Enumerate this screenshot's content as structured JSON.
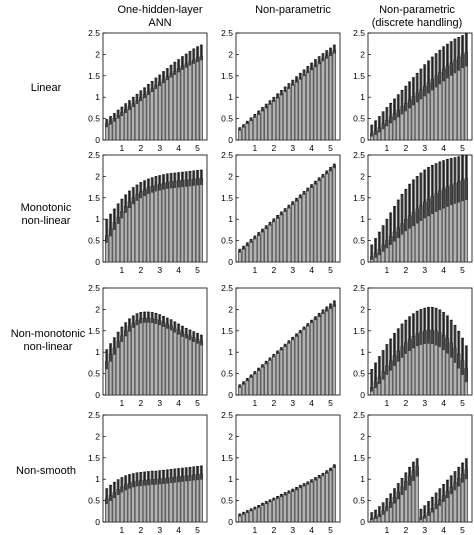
{
  "figure": {
    "column_titles": [
      [
        "One-hidden-layer",
        "ANN"
      ],
      [
        "Non-parametric",
        ""
      ],
      [
        "Non-parametric",
        "(discrete handling)"
      ]
    ],
    "row_labels": [
      [
        "Linear"
      ],
      [
        "Monotonic",
        "non-linear"
      ],
      [
        "Non-monotonic",
        "non-linear"
      ],
      [
        "Non-smooth"
      ]
    ]
  },
  "chart_data": {
    "type": "bar",
    "panel_grid": {
      "rows": 4,
      "cols": 3
    },
    "x": [
      0.2,
      0.4,
      0.6,
      0.8,
      1.0,
      1.2,
      1.4,
      1.6,
      1.8,
      2.0,
      2.2,
      2.4,
      2.6,
      2.8,
      3.0,
      3.2,
      3.4,
      3.6,
      3.8,
      4.0,
      4.2,
      4.4,
      4.6,
      4.8,
      5.0,
      5.2
    ],
    "xticks": [
      1,
      2,
      3,
      4,
      5
    ],
    "xlim": [
      0,
      5.5
    ],
    "yticks": [
      0,
      0.5,
      1,
      1.5,
      2,
      2.5
    ],
    "ylim": [
      0,
      2.5
    ],
    "bar_color": "#b3b3b3",
    "band_color": "#333333",
    "error_bar_style": "upper whisker with cap",
    "panels": [
      {
        "row": 0,
        "col": 0,
        "row_label": "Linear",
        "col_title": "One-hidden-layer ANN",
        "values": [
          0.38,
          0.44,
          0.51,
          0.58,
          0.64,
          0.71,
          0.78,
          0.85,
          0.92,
          0.99,
          1.06,
          1.13,
          1.2,
          1.27,
          1.34,
          1.41,
          1.48,
          1.55,
          1.61,
          1.67,
          1.73,
          1.78,
          1.83,
          1.87,
          1.92,
          1.96
        ],
        "upper": [
          0.48,
          0.55,
          0.62,
          0.7,
          0.77,
          0.85,
          0.92,
          1.0,
          1.07,
          1.15,
          1.22,
          1.3,
          1.37,
          1.45,
          1.52,
          1.6,
          1.67,
          1.75,
          1.82,
          1.88,
          1.95,
          2.01,
          2.07,
          2.13,
          2.18,
          2.22
        ],
        "band_low": [
          0.3,
          0.36,
          0.43,
          0.5,
          0.56,
          0.63,
          0.7,
          0.77,
          0.84,
          0.91,
          0.98,
          1.05,
          1.12,
          1.19,
          1.26,
          1.33,
          1.4,
          1.46,
          1.52,
          1.58,
          1.64,
          1.69,
          1.74,
          1.78,
          1.82,
          1.86
        ]
      },
      {
        "row": 0,
        "col": 1,
        "row_label": "Linear",
        "col_title": "Non-parametric",
        "values": [
          0.25,
          0.32,
          0.4,
          0.47,
          0.55,
          0.62,
          0.7,
          0.78,
          0.85,
          0.93,
          1.0,
          1.08,
          1.15,
          1.23,
          1.3,
          1.38,
          1.45,
          1.53,
          1.6,
          1.68,
          1.75,
          1.83,
          1.9,
          1.97,
          2.04,
          2.1
        ],
        "upper": [
          0.29,
          0.36,
          0.44,
          0.52,
          0.6,
          0.68,
          0.76,
          0.84,
          0.92,
          1.0,
          1.08,
          1.16,
          1.24,
          1.32,
          1.4,
          1.48,
          1.56,
          1.64,
          1.72,
          1.8,
          1.88,
          1.95,
          2.02,
          2.09,
          2.15,
          2.22
        ],
        "band_low": [
          0.22,
          0.29,
          0.37,
          0.44,
          0.52,
          0.59,
          0.67,
          0.74,
          0.82,
          0.89,
          0.97,
          1.04,
          1.12,
          1.19,
          1.27,
          1.34,
          1.41,
          1.49,
          1.56,
          1.63,
          1.7,
          1.77,
          1.84,
          1.9,
          1.96,
          2.02
        ]
      },
      {
        "row": 0,
        "col": 2,
        "row_label": "Linear",
        "col_title": "Non-parametric (discrete handling)",
        "values": [
          0.15,
          0.21,
          0.29,
          0.38,
          0.46,
          0.54,
          0.62,
          0.7,
          0.78,
          0.86,
          0.94,
          1.02,
          1.1,
          1.18,
          1.26,
          1.34,
          1.42,
          1.5,
          1.58,
          1.66,
          1.73,
          1.8,
          1.87,
          1.94,
          2.0,
          2.05
        ],
        "upper": [
          0.35,
          0.45,
          0.55,
          0.66,
          0.76,
          0.86,
          0.96,
          1.06,
          1.16,
          1.26,
          1.36,
          1.46,
          1.56,
          1.66,
          1.76,
          1.85,
          1.94,
          2.02,
          2.1,
          2.18,
          2.24,
          2.3,
          2.36,
          2.4,
          2.44,
          2.48
        ],
        "band_low": [
          0.08,
          0.12,
          0.18,
          0.25,
          0.32,
          0.39,
          0.46,
          0.53,
          0.6,
          0.67,
          0.74,
          0.81,
          0.88,
          0.95,
          1.02,
          1.09,
          1.16,
          1.23,
          1.3,
          1.37,
          1.44,
          1.5,
          1.56,
          1.62,
          1.68,
          1.72
        ]
      },
      {
        "row": 1,
        "col": 0,
        "row_label": "Monotonic non-linear",
        "col_title": "One-hidden-layer ANN",
        "values": [
          0.62,
          0.78,
          0.92,
          1.05,
          1.18,
          1.3,
          1.41,
          1.5,
          1.58,
          1.64,
          1.69,
          1.74,
          1.77,
          1.8,
          1.82,
          1.84,
          1.86,
          1.88,
          1.89,
          1.9,
          1.91,
          1.92,
          1.93,
          1.94,
          1.95,
          1.96
        ],
        "upper": [
          1.0,
          1.12,
          1.24,
          1.36,
          1.47,
          1.57,
          1.66,
          1.74,
          1.8,
          1.86,
          1.9,
          1.94,
          1.97,
          2.0,
          2.02,
          2.04,
          2.06,
          2.07,
          2.08,
          2.09,
          2.1,
          2.11,
          2.12,
          2.13,
          2.14,
          2.15
        ],
        "band_low": [
          0.45,
          0.6,
          0.75,
          0.89,
          1.02,
          1.15,
          1.26,
          1.35,
          1.43,
          1.49,
          1.54,
          1.59,
          1.62,
          1.65,
          1.67,
          1.69,
          1.71,
          1.72,
          1.73,
          1.74,
          1.75,
          1.76,
          1.77,
          1.78,
          1.79,
          1.8
        ]
      },
      {
        "row": 1,
        "col": 1,
        "row_label": "Monotonic non-linear",
        "col_title": "Non-parametric",
        "values": [
          0.25,
          0.32,
          0.4,
          0.48,
          0.56,
          0.64,
          0.72,
          0.8,
          0.88,
          0.96,
          1.04,
          1.12,
          1.2,
          1.28,
          1.36,
          1.44,
          1.52,
          1.6,
          1.68,
          1.76,
          1.84,
          1.92,
          2.0,
          2.08,
          2.16,
          2.24
        ],
        "upper": [
          0.3,
          0.37,
          0.45,
          0.53,
          0.61,
          0.69,
          0.77,
          0.85,
          0.93,
          1.01,
          1.09,
          1.17,
          1.25,
          1.33,
          1.41,
          1.49,
          1.57,
          1.65,
          1.73,
          1.81,
          1.89,
          1.97,
          2.05,
          2.13,
          2.21,
          2.29
        ],
        "band_low": [
          0.22,
          0.29,
          0.37,
          0.45,
          0.53,
          0.61,
          0.69,
          0.77,
          0.85,
          0.93,
          1.01,
          1.09,
          1.17,
          1.25,
          1.33,
          1.41,
          1.49,
          1.57,
          1.65,
          1.73,
          1.81,
          1.89,
          1.97,
          2.05,
          2.12,
          2.19
        ]
      },
      {
        "row": 1,
        "col": 2,
        "row_label": "Monotonic non-linear",
        "col_title": "Non-parametric (discrete handling)",
        "values": [
          0.12,
          0.2,
          0.3,
          0.4,
          0.5,
          0.6,
          0.7,
          0.8,
          0.9,
          1.0,
          1.08,
          1.16,
          1.24,
          1.32,
          1.4,
          1.47,
          1.54,
          1.6,
          1.66,
          1.71,
          1.76,
          1.8,
          1.84,
          1.88,
          1.92,
          1.95
        ],
        "upper": [
          0.4,
          0.55,
          0.7,
          0.85,
          1.0,
          1.15,
          1.3,
          1.45,
          1.58,
          1.7,
          1.82,
          1.92,
          2.0,
          2.08,
          2.15,
          2.21,
          2.26,
          2.3,
          2.34,
          2.37,
          2.4,
          2.42,
          2.44,
          2.46,
          2.48,
          2.5
        ],
        "band_low": [
          0.05,
          0.1,
          0.16,
          0.24,
          0.32,
          0.4,
          0.48,
          0.56,
          0.64,
          0.72,
          0.78,
          0.84,
          0.9,
          0.96,
          1.02,
          1.07,
          1.12,
          1.17,
          1.21,
          1.25,
          1.29,
          1.33,
          1.36,
          1.39,
          1.42,
          1.45
        ]
      },
      {
        "row": 2,
        "col": 0,
        "row_label": "Non-monotonic non-linear",
        "col_title": "One-hidden-layer ANN",
        "values": [
          0.78,
          0.95,
          1.1,
          1.25,
          1.38,
          1.5,
          1.6,
          1.68,
          1.74,
          1.78,
          1.8,
          1.8,
          1.79,
          1.77,
          1.74,
          1.7,
          1.66,
          1.62,
          1.57,
          1.52,
          1.47,
          1.42,
          1.38,
          1.34,
          1.3,
          1.26
        ],
        "upper": [
          1.06,
          1.2,
          1.34,
          1.47,
          1.59,
          1.69,
          1.78,
          1.85,
          1.9,
          1.93,
          1.94,
          1.94,
          1.93,
          1.91,
          1.88,
          1.84,
          1.8,
          1.76,
          1.71,
          1.66,
          1.61,
          1.56,
          1.52,
          1.48,
          1.44,
          1.4
        ],
        "band_low": [
          0.6,
          0.78,
          0.94,
          1.1,
          1.24,
          1.37,
          1.48,
          1.57,
          1.63,
          1.67,
          1.69,
          1.69,
          1.68,
          1.66,
          1.63,
          1.59,
          1.55,
          1.51,
          1.46,
          1.41,
          1.36,
          1.32,
          1.28,
          1.24,
          1.2,
          1.16
        ]
      },
      {
        "row": 2,
        "col": 1,
        "row_label": "Non-monotonic non-linear",
        "col_title": "Non-parametric",
        "values": [
          0.2,
          0.27,
          0.35,
          0.43,
          0.51,
          0.59,
          0.67,
          0.75,
          0.83,
          0.91,
          0.99,
          1.07,
          1.15,
          1.23,
          1.31,
          1.39,
          1.47,
          1.55,
          1.63,
          1.71,
          1.79,
          1.86,
          1.93,
          2.0,
          2.06,
          2.11
        ],
        "upper": [
          0.24,
          0.31,
          0.39,
          0.47,
          0.55,
          0.63,
          0.71,
          0.79,
          0.87,
          0.95,
          1.03,
          1.11,
          1.19,
          1.27,
          1.35,
          1.43,
          1.51,
          1.59,
          1.67,
          1.75,
          1.83,
          1.91,
          1.99,
          2.06,
          2.13,
          2.2
        ],
        "band_low": [
          0.17,
          0.24,
          0.32,
          0.4,
          0.48,
          0.56,
          0.64,
          0.72,
          0.8,
          0.88,
          0.96,
          1.04,
          1.12,
          1.2,
          1.28,
          1.36,
          1.44,
          1.52,
          1.6,
          1.68,
          1.75,
          1.82,
          1.89,
          1.95,
          2.01,
          2.06
        ]
      },
      {
        "row": 2,
        "col": 2,
        "row_label": "Non-monotonic non-linear",
        "col_title": "Non-parametric (discrete handling)",
        "values": [
          0.18,
          0.3,
          0.42,
          0.55,
          0.68,
          0.8,
          0.92,
          1.03,
          1.13,
          1.22,
          1.3,
          1.37,
          1.43,
          1.47,
          1.5,
          1.52,
          1.52,
          1.5,
          1.46,
          1.4,
          1.32,
          1.22,
          1.1,
          0.96,
          0.8,
          0.62
        ],
        "upper": [
          0.6,
          0.75,
          0.9,
          1.04,
          1.18,
          1.31,
          1.44,
          1.55,
          1.66,
          1.75,
          1.83,
          1.9,
          1.96,
          2.0,
          2.03,
          2.05,
          2.05,
          2.03,
          1.99,
          1.93,
          1.85,
          1.75,
          1.63,
          1.49,
          1.33,
          1.15
        ],
        "band_low": [
          0.08,
          0.16,
          0.26,
          0.36,
          0.47,
          0.57,
          0.68,
          0.78,
          0.87,
          0.96,
          1.03,
          1.09,
          1.14,
          1.17,
          1.19,
          1.2,
          1.19,
          1.16,
          1.12,
          1.05,
          0.97,
          0.87,
          0.75,
          0.62,
          0.47,
          0.3
        ]
      },
      {
        "row": 3,
        "col": 0,
        "row_label": "Non-smooth",
        "col_title": "One-hidden-layer ANN",
        "values": [
          0.55,
          0.62,
          0.69,
          0.76,
          0.82,
          0.87,
          0.91,
          0.94,
          0.96,
          0.97,
          0.98,
          0.99,
          1.0,
          1.0,
          1.01,
          1.02,
          1.03,
          1.04,
          1.05,
          1.06,
          1.07,
          1.08,
          1.09,
          1.1,
          1.11,
          1.12
        ],
        "upper": [
          0.78,
          0.86,
          0.93,
          0.99,
          1.04,
          1.08,
          1.11,
          1.13,
          1.15,
          1.16,
          1.17,
          1.18,
          1.19,
          1.19,
          1.2,
          1.21,
          1.22,
          1.23,
          1.24,
          1.25,
          1.26,
          1.27,
          1.28,
          1.29,
          1.3,
          1.31
        ],
        "band_low": [
          0.42,
          0.49,
          0.56,
          0.63,
          0.69,
          0.74,
          0.78,
          0.81,
          0.83,
          0.84,
          0.85,
          0.86,
          0.87,
          0.87,
          0.88,
          0.89,
          0.9,
          0.91,
          0.92,
          0.93,
          0.94,
          0.95,
          0.96,
          0.97,
          0.98,
          0.99
        ]
      },
      {
        "row": 3,
        "col": 1,
        "row_label": "Non-smooth",
        "col_title": "Non-parametric",
        "values": [
          0.15,
          0.19,
          0.23,
          0.27,
          0.31,
          0.35,
          0.4,
          0.44,
          0.48,
          0.52,
          0.56,
          0.61,
          0.65,
          0.69,
          0.73,
          0.77,
          0.82,
          0.86,
          0.9,
          0.95,
          1.0,
          1.05,
          1.1,
          1.16,
          1.22,
          1.3
        ],
        "upper": [
          0.19,
          0.23,
          0.27,
          0.31,
          0.35,
          0.39,
          0.44,
          0.48,
          0.52,
          0.56,
          0.6,
          0.65,
          0.69,
          0.73,
          0.77,
          0.81,
          0.86,
          0.9,
          0.94,
          0.99,
          1.04,
          1.09,
          1.14,
          1.2,
          1.26,
          1.34
        ],
        "band_low": [
          0.13,
          0.17,
          0.21,
          0.25,
          0.29,
          0.33,
          0.38,
          0.42,
          0.46,
          0.5,
          0.54,
          0.58,
          0.62,
          0.66,
          0.7,
          0.74,
          0.79,
          0.83,
          0.87,
          0.92,
          0.97,
          1.02,
          1.07,
          1.13,
          1.19,
          1.26
        ]
      },
      {
        "row": 3,
        "col": 2,
        "row_label": "Non-smooth",
        "col_title": "Non-parametric (discrete handling)",
        "values": [
          0.08,
          0.12,
          0.18,
          0.26,
          0.36,
          0.46,
          0.58,
          0.7,
          0.82,
          0.95,
          1.08,
          1.2,
          1.3,
          0.1,
          0.14,
          0.22,
          0.32,
          0.42,
          0.52,
          0.62,
          0.72,
          0.82,
          0.92,
          1.02,
          1.12,
          1.22
        ],
        "upper": [
          0.22,
          0.28,
          0.36,
          0.45,
          0.55,
          0.66,
          0.78,
          0.9,
          1.02,
          1.15,
          1.28,
          1.4,
          1.48,
          0.3,
          0.38,
          0.48,
          0.58,
          0.68,
          0.78,
          0.88,
          0.98,
          1.08,
          1.18,
          1.28,
          1.38,
          1.48
        ],
        "band_low": [
          0.04,
          0.07,
          0.11,
          0.17,
          0.25,
          0.33,
          0.43,
          0.53,
          0.63,
          0.74,
          0.85,
          0.96,
          1.06,
          0.04,
          0.08,
          0.14,
          0.22,
          0.3,
          0.38,
          0.47,
          0.56,
          0.65,
          0.74,
          0.83,
          0.92,
          1.0
        ]
      }
    ]
  }
}
